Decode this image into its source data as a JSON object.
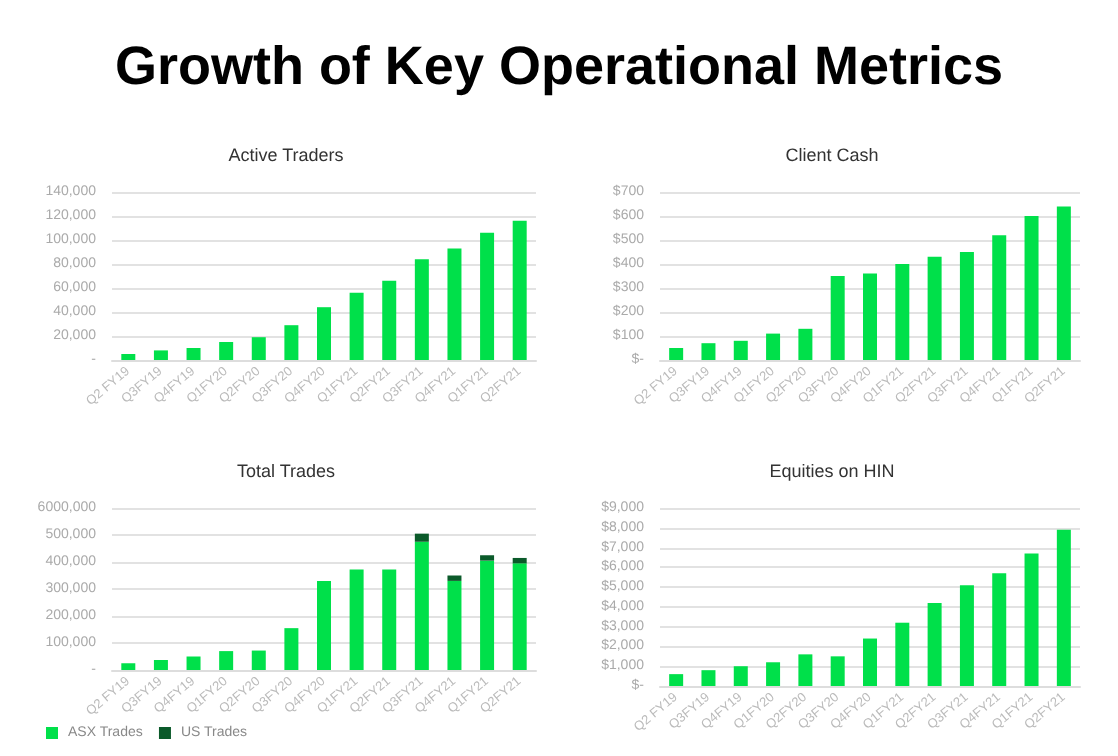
{
  "chart_data": [
    {
      "type": "other",
      "title": "Growth of Key Operational Metrics"
    },
    {
      "type": "bar",
      "title": "Active Traders",
      "categories": [
        "Q2 FY19",
        "Q3FY19",
        "Q4FY19",
        "Q1FY20",
        "Q2FY20",
        "Q3FY20",
        "Q4FY20",
        "Q1FY21",
        "Q2FY21",
        "Q3FY21",
        "Q4FY21",
        "Q1FY21",
        "Q2FY21"
      ],
      "series": [
        {
          "color": "#00e04a",
          "values": [
            5000,
            8000,
            10000,
            15000,
            19000,
            29000,
            44000,
            56000,
            66000,
            84000,
            93000,
            106000,
            116000
          ]
        }
      ],
      "ylim": [
        0,
        140000
      ],
      "yticks": [
        {
          "value": 0,
          "label": "-"
        },
        {
          "value": 20000,
          "label": "20,000"
        },
        {
          "value": 40000,
          "label": "40,000"
        },
        {
          "value": 60000,
          "label": "60,000"
        },
        {
          "value": 80000,
          "label": "80,000"
        },
        {
          "value": 100000,
          "label": "100,000"
        },
        {
          "value": 120000,
          "label": "120,000"
        },
        {
          "value": 140000,
          "label": "140,000"
        }
      ],
      "grid": "y"
    },
    {
      "type": "bar",
      "title": "Client Cash",
      "categories": [
        "Q2 FY19",
        "Q3FY19",
        "Q4FY19",
        "Q1FY20",
        "Q2FY20",
        "Q3FY20",
        "Q4FY20",
        "Q1FY21",
        "Q2FY21",
        "Q3FY21",
        "Q4FY21",
        "Q1FY21",
        "Q2FY21"
      ],
      "series": [
        {
          "color": "#00e04a",
          "values": [
            50,
            70,
            80,
            110,
            130,
            350,
            360,
            400,
            430,
            450,
            520,
            600,
            640
          ]
        }
      ],
      "ylim": [
        0,
        700
      ],
      "yticks": [
        {
          "value": 0,
          "label": "$-"
        },
        {
          "value": 100,
          "label": "$100"
        },
        {
          "value": 200,
          "label": "$200"
        },
        {
          "value": 300,
          "label": "$300"
        },
        {
          "value": 400,
          "label": "$400"
        },
        {
          "value": 500,
          "label": "$500"
        },
        {
          "value": 600,
          "label": "$600"
        },
        {
          "value": 700,
          "label": "$700"
        }
      ],
      "grid": "y"
    },
    {
      "type": "bar",
      "title": "Total Trades",
      "stacked": true,
      "legend": "bottom left",
      "categories": [
        "Q2 FY19",
        "Q3FY19",
        "Q4FY19",
        "Q1FY20",
        "Q2FY20",
        "Q3FY20",
        "Q4FY20",
        "Q1FY21",
        "Q2FY21",
        "Q3FY21",
        "Q4FY21",
        "Q1FY21",
        "Q2FY21"
      ],
      "series": [
        {
          "name": "ASX Trades",
          "color": "#00e04a",
          "values": [
            25000,
            37000,
            50000,
            70000,
            72000,
            155000,
            330000,
            372000,
            372000,
            475000,
            330000,
            405000,
            395000
          ]
        },
        {
          "name": "US Trades",
          "color": "#0b5a2a",
          "values": [
            null,
            null,
            null,
            null,
            null,
            null,
            null,
            null,
            null,
            30000,
            20000,
            20000,
            20000
          ]
        }
      ],
      "ylim": [
        0,
        600000
      ],
      "yticks": [
        {
          "value": 0,
          "label": "-"
        },
        {
          "value": 100000,
          "label": "100,000"
        },
        {
          "value": 200000,
          "label": "200,000"
        },
        {
          "value": 300000,
          "label": "300,000"
        },
        {
          "value": 400000,
          "label": "400,000"
        },
        {
          "value": 500000,
          "label": "500,000"
        },
        {
          "value": 600000,
          "label": "6000,000"
        }
      ],
      "grid": "y"
    },
    {
      "type": "bar",
      "title": "Equities on HIN",
      "categories": [
        "Q2 FY19",
        "Q3FY19",
        "Q4FY19",
        "Q1FY20",
        "Q2FY20",
        "Q3FY20",
        "Q4FY20",
        "Q1FY21",
        "Q2FY21",
        "Q3FY21",
        "Q4FY21",
        "Q1FY21",
        "Q2FY21"
      ],
      "series": [
        {
          "color": "#00e04a",
          "values": [
            600,
            800,
            1000,
            1200,
            1600,
            1500,
            2400,
            3200,
            4200,
            5100,
            5700,
            6700,
            7900
          ]
        }
      ],
      "ylim": [
        0,
        9000
      ],
      "yticks": [
        {
          "value": 0,
          "label": "$-"
        },
        {
          "value": 1000,
          "label": "$1,000"
        },
        {
          "value": 2000,
          "label": "$2,000"
        },
        {
          "value": 3000,
          "label": "$3,000"
        },
        {
          "value": 4000,
          "label": "$4,000"
        },
        {
          "value": 5000,
          "label": "$5,000"
        },
        {
          "value": 6000,
          "label": "$6,000"
        },
        {
          "value": 7000,
          "label": "$7,000"
        },
        {
          "value": 8000,
          "label": "$8,000"
        },
        {
          "value": 9000,
          "label": "$9,000"
        }
      ],
      "grid": "y"
    }
  ]
}
